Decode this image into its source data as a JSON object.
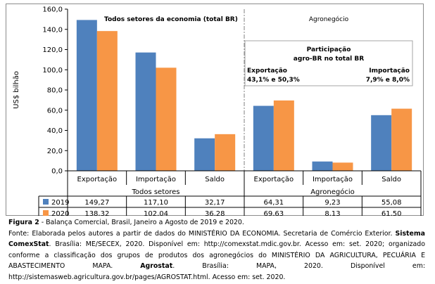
{
  "chart_data": {
    "type": "bar",
    "ylabel": "US$ bilhão",
    "ylim": [
      0,
      160
    ],
    "yticks": [
      "0,0",
      "20,0",
      "40,0",
      "60,0",
      "80,0",
      "100,0",
      "120,0",
      "140,0",
      "160,0"
    ],
    "grid": false,
    "categories": [
      "Exportação",
      "Importação",
      "Saldo",
      "Exportação",
      "Importação",
      "Saldo"
    ],
    "groups": [
      {
        "label": "Todos setores",
        "annotation": "Todos setores da economia (total BR)"
      },
      {
        "label": "Agronegócio",
        "annotation": "Agronegócio"
      }
    ],
    "series": [
      {
        "name": "2019",
        "color": "#4f81bd",
        "values": [
          149.27,
          117.1,
          32.17,
          64.31,
          9.23,
          55.08
        ],
        "labels": [
          "149,27",
          "117,10",
          "32,17",
          "64,31",
          "9,23",
          "55,08"
        ]
      },
      {
        "name": "2020",
        "color": "#f79646",
        "values": [
          138.32,
          102.04,
          36.28,
          69.63,
          8.13,
          61.5
        ],
        "labels": [
          "138,32",
          "102,04",
          "36,28",
          "69,63",
          "8,13",
          "61,50"
        ]
      }
    ],
    "participation_box": {
      "title_line1": "Participação",
      "title_line2": "agro-BR  no total BR",
      "export_label": "Exportação",
      "export_value": "43,1% e 50,3%",
      "import_label": "Importação",
      "import_value": "7,9% e 8,0%"
    }
  },
  "caption": {
    "figure_label": "Figura 2",
    "figure_text": " - Balança Comercial, Brasil, Janeiro a Agosto de 2019 e 2020.",
    "source_line1": "Fonte: Elaborada pelos autores a partir de dados do MINISTÉRIO DA ECONOMIA. Secretaria de Comércio Exterior. ",
    "source_bold1": "Sistema ComexStat",
    "source_line2": ". Brasília: ME/SECEX, 2020. Disponível em: http://comexstat.mdic.gov.br. Acesso em: set. 2020; organizado conforme a classificação dos grupos de produtos dos agronegócios do MINISTÉRIO DA AGRICULTURA, PECUÁRIA E ABASTECIMENTO MAPA. ",
    "source_bold2": "Agrostat",
    "source_line3": ". Brasília: MAPA, 2020. Disponível em: http://sistemasweb.agricultura.gov.br/pages/AGROSTAT.html. Acesso em: set. 2020."
  }
}
